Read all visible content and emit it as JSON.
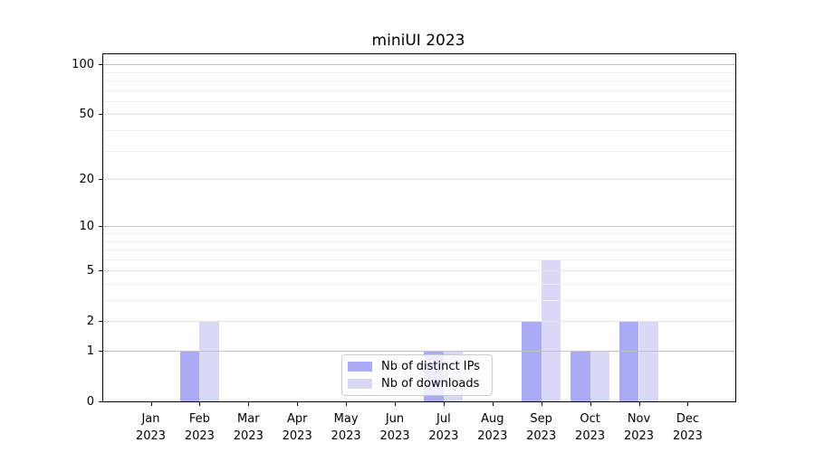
{
  "chart_data": {
    "type": "bar",
    "title": "miniUI 2023",
    "categories": [
      "Jan",
      "Feb",
      "Mar",
      "Apr",
      "May",
      "Jun",
      "Jul",
      "Aug",
      "Sep",
      "Oct",
      "Nov",
      "Dec"
    ],
    "year": "2023",
    "series": [
      {
        "name": "Nb of distinct IPs",
        "color": "#aaaaf7",
        "values": [
          0,
          1,
          0,
          0,
          0,
          0,
          1,
          0,
          2,
          1,
          2,
          0
        ]
      },
      {
        "name": "Nb of downloads",
        "color": "#d9d9f6",
        "values": [
          0,
          2,
          0,
          0,
          0,
          0,
          1,
          0,
          6,
          1,
          2,
          0
        ]
      }
    ],
    "xlabel": "",
    "ylabel": "",
    "yscale": "log1p",
    "ylim": [
      0,
      115
    ],
    "yticks": [
      0,
      1,
      2,
      5,
      10,
      20,
      50,
      100
    ],
    "major_gridlines": [
      1,
      10,
      100
    ],
    "minor_gridlines": [
      3,
      4,
      6,
      7,
      8,
      9,
      30,
      40,
      60,
      70,
      80,
      90
    ],
    "grid": true,
    "legend_position": "inside-bottom-center"
  },
  "colors": {
    "background": "#ffffff",
    "spine": "#000000",
    "grid_major": "#c2c2c2",
    "grid_mid": "#e3e3e3",
    "grid_minor": "#f1f1f1",
    "legend_border": "#cccccc"
  }
}
